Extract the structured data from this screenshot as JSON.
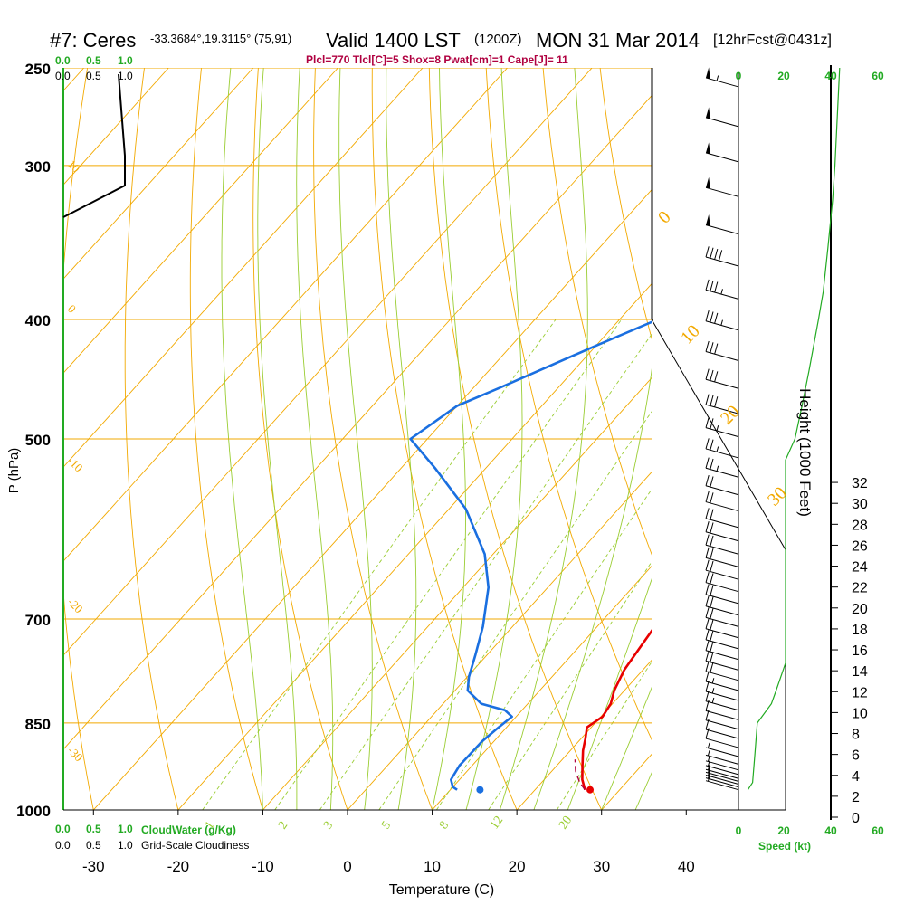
{
  "header": {
    "station": "#7: Ceres",
    "coords": "-33.3684°,19.3115° (75,91)",
    "valid": "Valid 1400 LST",
    "utc": "(1200Z)",
    "date": "MON 31 Mar 2014",
    "forecast": "[12hrFcst@0431z]",
    "indices": "Plcl=770 Tlcl[C]=5 Shox=8 Pwat[cm]=1 Cape[J]= 11"
  },
  "colors": {
    "temperature": "#e80000",
    "dewpoint": "#1a6fe0",
    "isobar": "#f2a900",
    "isotherm": "#f2a900",
    "dry_adiabat": "#f2a900",
    "moist_adiabat": "#9acd32",
    "mixing_ratio": "#9acd32",
    "cloudwater": "#22aa22",
    "speed": "#22aa22",
    "indices": "#b00040",
    "lcl_parcel": "#b00040"
  },
  "chart_data": {
    "type": "line",
    "title": "Skew-T log-P sounding",
    "xlabel": "Temperature (C)",
    "ylabel": "P (hPa)",
    "right_label": "Height (1000 Feet)",
    "x_ticks": [
      "-30",
      "-20",
      "-10",
      "0",
      "10",
      "20",
      "30",
      "40"
    ],
    "pressure_levels": [
      "250",
      "300",
      "400",
      "500",
      "700",
      "850",
      "1000"
    ],
    "height_ticks": [
      "0",
      "2",
      "4",
      "6",
      "8",
      "10",
      "12",
      "14",
      "16",
      "18",
      "20",
      "22",
      "24",
      "26",
      "28",
      "30",
      "32"
    ],
    "dry_adiabat_labels": [
      "-30",
      "-20",
      "-10",
      "0",
      "10",
      "20",
      "30"
    ],
    "isotherm_labels": [
      "10",
      "0",
      "-10",
      "-20",
      "-30"
    ],
    "mixing_ratio_labels": [
      "1",
      "2",
      "3",
      "5",
      "8",
      "12",
      "20"
    ],
    "series": [
      {
        "name": "Temperature",
        "points": [
          [
            25.9,
            963
          ],
          [
            24.5,
            945
          ],
          [
            23,
            920
          ],
          [
            21.5,
            895
          ],
          [
            20.5,
            875
          ],
          [
            19.5,
            857
          ],
          [
            20.2,
            840
          ],
          [
            19.8,
            820
          ],
          [
            18.8,
            800
          ],
          [
            17.8,
            770
          ],
          [
            17.3,
            740
          ],
          [
            16.8,
            710
          ],
          [
            16.2,
            680
          ],
          [
            15.5,
            650
          ],
          [
            14.8,
            620
          ],
          [
            14.0,
            590
          ],
          [
            13.3,
            560
          ],
          [
            12.3,
            530
          ],
          [
            11.2,
            500
          ],
          [
            10.0,
            475
          ],
          [
            8.6,
            450
          ],
          [
            7.0,
            425
          ],
          [
            5.3,
            400
          ],
          [
            3.5,
            375
          ],
          [
            1.5,
            350
          ],
          [
            -0.8,
            325
          ],
          [
            -2.3,
            310
          ],
          [
            -4.5,
            293
          ],
          [
            -6.5,
            278
          ],
          [
            -8.1,
            265
          ],
          [
            -9.7,
            254
          ]
        ]
      },
      {
        "name": "Dewpoint",
        "points": [
          [
            10.8,
            963
          ],
          [
            10.0,
            958
          ],
          [
            9.0,
            945
          ],
          [
            8.5,
            920
          ],
          [
            8.6,
            880
          ],
          [
            9.0,
            860
          ],
          [
            9.5,
            840
          ],
          [
            8.0,
            830
          ],
          [
            4.5,
            820
          ],
          [
            1.5,
            800
          ],
          [
            0.2,
            780
          ],
          [
            -1.3,
            750
          ],
          [
            -3.5,
            710
          ],
          [
            -7.0,
            660
          ],
          [
            -11.0,
            620
          ],
          [
            -18.0,
            570
          ],
          [
            -26.0,
            528
          ],
          [
            -32.0,
            500
          ],
          [
            -30.0,
            470
          ],
          [
            -27.0,
            455
          ],
          [
            -20.0,
            420
          ],
          [
            -15.5,
            400
          ],
          [
            -11.0,
            370
          ],
          [
            -8.0,
            355
          ],
          [
            -5.8,
            340
          ],
          [
            -5.5,
            325
          ],
          [
            -5.5,
            310
          ],
          [
            -6.0,
            298
          ],
          [
            -8.5,
            288
          ],
          [
            -10.5,
            275
          ],
          [
            -12.2,
            262
          ],
          [
            -13.5,
            254
          ]
        ]
      },
      {
        "name": "Parcel",
        "points": [
          [
            25.9,
            963
          ],
          [
            24.5,
            950
          ],
          [
            22.8,
            930
          ],
          [
            21.5,
            910
          ]
        ]
      }
    ],
    "surface_markers": [
      {
        "name": "dewpoint",
        "T": 13.5,
        "P": 963
      },
      {
        "name": "temperature",
        "T": 26.5,
        "P": 963
      }
    ],
    "cloudwater_axis": [
      "0.0",
      "0.5",
      "1.0"
    ],
    "cloudwater_label": "CloudWater (g/Kg)",
    "cloudiness_axis": [
      "0.0",
      "0.5",
      "1.0"
    ],
    "cloudiness_label": "Grid-Scale Cloudiness",
    "speed_axis": [
      "0",
      "20",
      "40",
      "60"
    ],
    "speed_label": "Speed (kt)",
    "wind_profile_kt": [
      [
        963,
        4
      ],
      [
        950,
        6
      ],
      [
        900,
        7
      ],
      [
        850,
        8
      ],
      [
        820,
        14
      ],
      [
        800,
        16
      ],
      [
        760,
        20
      ],
      [
        720,
        20
      ],
      [
        700,
        20
      ],
      [
        680,
        20
      ],
      [
        640,
        20
      ],
      [
        600,
        20
      ],
      [
        560,
        20
      ],
      [
        540,
        20
      ],
      [
        520,
        20
      ],
      [
        500,
        24
      ],
      [
        470,
        27
      ],
      [
        440,
        30
      ],
      [
        400,
        34
      ],
      [
        380,
        36
      ],
      [
        350,
        38
      ],
      [
        320,
        40
      ],
      [
        300,
        41
      ],
      [
        250,
        43
      ]
    ],
    "wind_barbs": [
      {
        "p": 963,
        "spd": 5
      },
      {
        "p": 958,
        "spd": 5
      },
      {
        "p": 953,
        "spd": 5
      },
      {
        "p": 948,
        "spd": 5
      },
      {
        "p": 943,
        "spd": 5
      },
      {
        "p": 936,
        "spd": 5
      },
      {
        "p": 928,
        "spd": 5
      },
      {
        "p": 918,
        "spd": 5
      },
      {
        "p": 905,
        "spd": 5
      },
      {
        "p": 890,
        "spd": 10
      },
      {
        "p": 875,
        "spd": 10
      },
      {
        "p": 860,
        "spd": 10
      },
      {
        "p": 845,
        "spd": 10
      },
      {
        "p": 830,
        "spd": 15
      },
      {
        "p": 815,
        "spd": 15
      },
      {
        "p": 800,
        "spd": 15
      },
      {
        "p": 785,
        "spd": 20
      },
      {
        "p": 770,
        "spd": 20
      },
      {
        "p": 755,
        "spd": 20
      },
      {
        "p": 740,
        "spd": 20
      },
      {
        "p": 725,
        "spd": 20
      },
      {
        "p": 710,
        "spd": 20
      },
      {
        "p": 695,
        "spd": 20
      },
      {
        "p": 680,
        "spd": 20
      },
      {
        "p": 665,
        "spd": 20
      },
      {
        "p": 650,
        "spd": 20
      },
      {
        "p": 635,
        "spd": 20
      },
      {
        "p": 620,
        "spd": 20
      },
      {
        "p": 605,
        "spd": 20
      },
      {
        "p": 590,
        "spd": 20
      },
      {
        "p": 572,
        "spd": 20
      },
      {
        "p": 555,
        "spd": 20
      },
      {
        "p": 537,
        "spd": 25
      },
      {
        "p": 518,
        "spd": 25
      },
      {
        "p": 498,
        "spd": 25
      },
      {
        "p": 477,
        "spd": 30
      },
      {
        "p": 455,
        "spd": 30
      },
      {
        "p": 432,
        "spd": 30
      },
      {
        "p": 408,
        "spd": 35
      },
      {
        "p": 385,
        "spd": 35
      },
      {
        "p": 362,
        "spd": 40
      },
      {
        "p": 341,
        "spd": 50
      },
      {
        "p": 318,
        "spd": 50
      },
      {
        "p": 298,
        "spd": 50
      },
      {
        "p": 279,
        "spd": 50
      },
      {
        "p": 259,
        "spd": 55
      }
    ]
  }
}
